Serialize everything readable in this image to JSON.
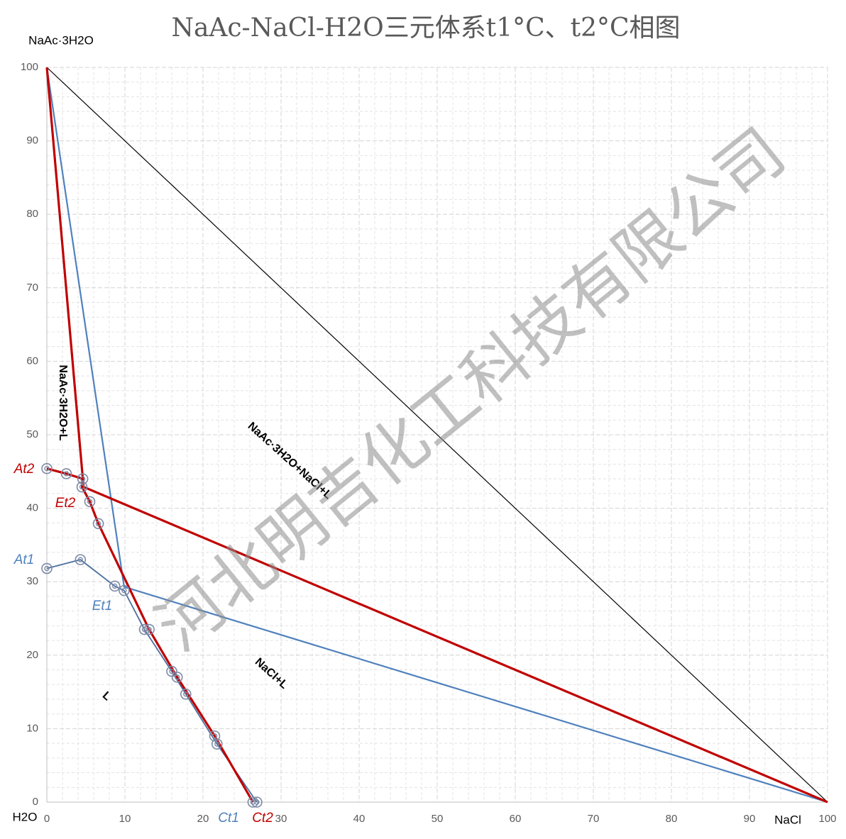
{
  "chart_data": {
    "type": "line",
    "title": "NaAc-NaCl-H2O三元体系t1°C、t2°C相图",
    "y_axis_label": "NaAc·3H2O",
    "x_axis_label": "NaCl",
    "origin_label": "H2O",
    "xlim": [
      0,
      100
    ],
    "ylim": [
      0,
      100
    ],
    "xticks": [
      0,
      10,
      20,
      30,
      40,
      50,
      60,
      70,
      80,
      90,
      100
    ],
    "yticks": [
      0,
      10,
      20,
      30,
      40,
      50,
      60,
      70,
      80,
      90,
      100
    ],
    "grid": true,
    "marker_color": "#7d8aa6",
    "series": [
      {
        "color": "#000000",
        "width": 1.2,
        "markers": false,
        "x": [
          0,
          100
        ],
        "values": [
          100,
          0
        ]
      },
      {
        "color": "#4a6f9e",
        "width": 1.8,
        "markers": true,
        "x": [
          0,
          4.3,
          8.7,
          9.9,
          12.5,
          16,
          17.8,
          21.8,
          26.9
        ],
        "values": [
          31.8,
          33,
          29.4,
          28.8,
          23.5,
          17.8,
          14.7,
          7.9,
          0
        ]
      },
      {
        "color": "#4f81bd",
        "width": 2.2,
        "markers": false,
        "x": [
          0,
          9.9,
          100
        ],
        "values": [
          100,
          29.3,
          0
        ]
      },
      {
        "color": "#c00000",
        "width": 3.2,
        "markers": true,
        "x": [
          0,
          2.5,
          4.6,
          4.5,
          5.5,
          6.6,
          13.1,
          16.7,
          21.5,
          26.4
        ],
        "values": [
          45.4,
          44.7,
          44,
          42.9,
          40.9,
          37.9,
          23.5,
          17,
          9,
          0
        ]
      },
      {
        "color": "#c00000",
        "width": 3.2,
        "markers": false,
        "x": [
          0,
          4.7,
          100
        ],
        "values": [
          100,
          42.9,
          0
        ]
      }
    ],
    "annotations": [
      "At2",
      "Et2",
      "At1",
      "Et1",
      "Ct1",
      "Ct2",
      "NaAc·3H2O+L",
      "NaAc·3H2O+NaCl+L",
      "NaCl+L",
      "L"
    ],
    "watermark": "河北明吉化工科技有限公司"
  }
}
